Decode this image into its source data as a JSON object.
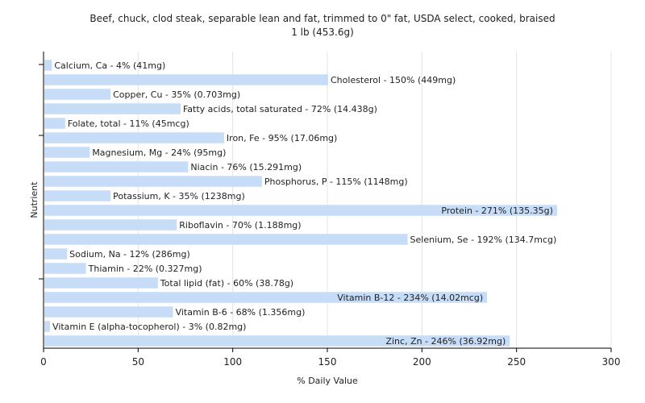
{
  "chart_data": {
    "type": "bar",
    "orientation": "horizontal",
    "title": "Beef, chuck, clod steak, separable lean and fat, trimmed to 0\" fat, USDA select, cooked, braised",
    "subtitle": "1 lb (453.6g)",
    "xlabel": "% Daily Value",
    "ylabel": "Nutrient",
    "xlim": [
      0,
      300
    ],
    "xticks": [
      0,
      50,
      100,
      150,
      200,
      250,
      300
    ],
    "grid": true,
    "bar_color": "#c6dcf7",
    "categories": [
      "Calcium, Ca",
      "Cholesterol",
      "Copper, Cu",
      "Fatty acids, total saturated",
      "Folate, total",
      "Iron, Fe",
      "Magnesium, Mg",
      "Niacin",
      "Phosphorus, P",
      "Potassium, K",
      "Protein",
      "Riboflavin",
      "Selenium, Se",
      "Sodium, Na",
      "Thiamin",
      "Total lipid (fat)",
      "Vitamin B-12",
      "Vitamin B-6",
      "Vitamin E (alpha-tocopherol)",
      "Zinc, Zn"
    ],
    "values": [
      4,
      150,
      35,
      72,
      11,
      95,
      24,
      76,
      115,
      35,
      271,
      70,
      192,
      12,
      22,
      60,
      234,
      68,
      3,
      246
    ],
    "labels": [
      "Calcium, Ca - 4% (41mg)",
      "Cholesterol - 150% (449mg)",
      "Copper, Cu - 35% (0.703mg)",
      "Fatty acids, total saturated - 72% (14.438g)",
      "Folate, total - 11% (45mcg)",
      "Iron, Fe - 95% (17.06mg)",
      "Magnesium, Mg - 24% (95mg)",
      "Niacin - 76% (15.291mg)",
      "Phosphorus, P - 115% (1148mg)",
      "Potassium, K - 35% (1238mg)",
      "Protein - 271% (135.35g)",
      "Riboflavin - 70% (1.188mg)",
      "Selenium, Se - 192% (134.7mcg)",
      "Sodium, Na - 12% (286mg)",
      "Thiamin - 22% (0.327mg)",
      "Total lipid (fat) - 60% (38.78g)",
      "Vitamin B-12 - 234% (14.02mcg)",
      "Vitamin B-6 - 68% (1.356mg)",
      "Vitamin E (alpha-tocopherol) - 3% (0.82mg)",
      "Zinc, Zn - 246% (36.92mg)"
    ]
  }
}
